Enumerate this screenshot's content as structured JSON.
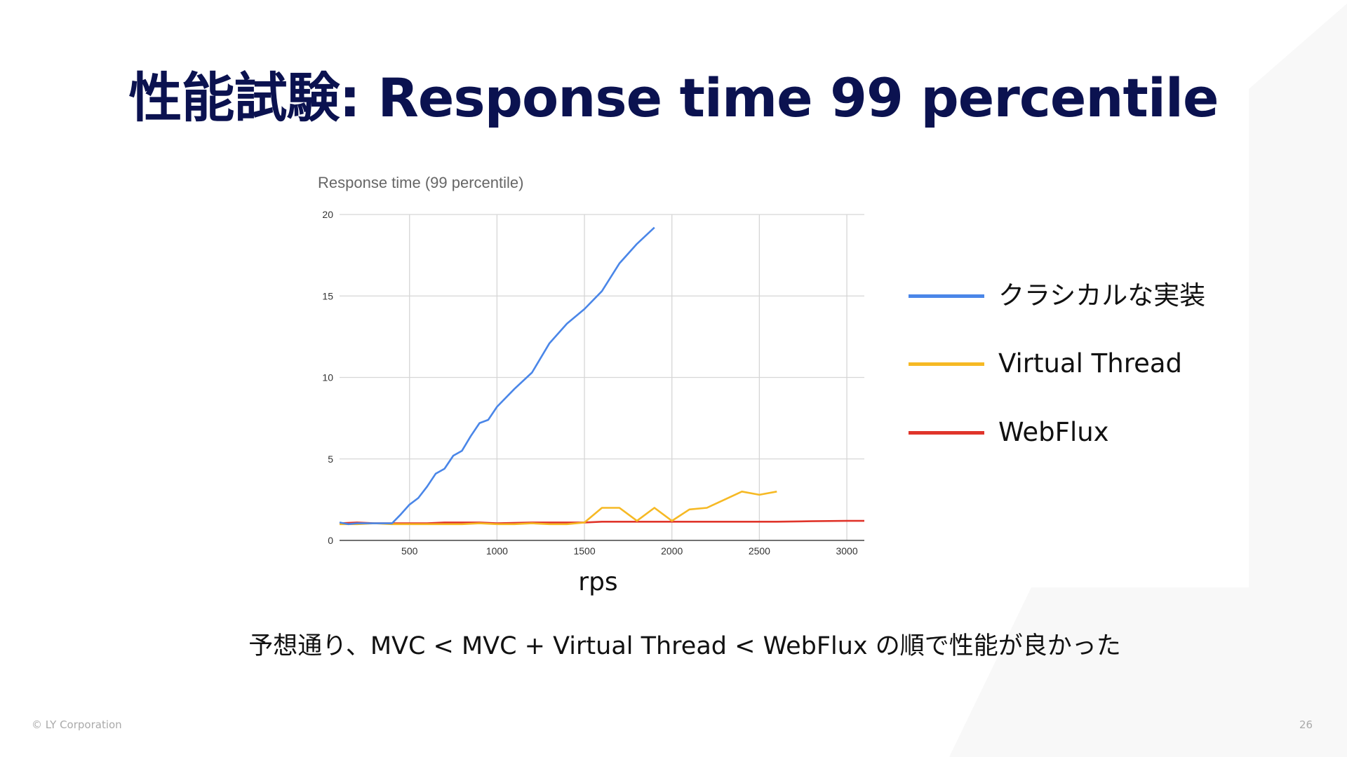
{
  "slide": {
    "title": "性能試験: Response time 99 percentile",
    "caption": "予想通り、MVC < MVC + Virtual Thread < WebFlux の順で性能が良かった",
    "footer": "© LY Corporation",
    "page_number": "26",
    "background_shape_color": "#f8f8f8"
  },
  "chart_data": {
    "type": "line",
    "title": "Response time (99 percentile)",
    "xlabel": "rps",
    "ylabel": "",
    "xlim": [
      100,
      3100
    ],
    "ylim": [
      0,
      20
    ],
    "xticks": [
      500,
      1000,
      1500,
      2000,
      2500,
      3000
    ],
    "yticks": [
      0,
      5,
      10,
      15,
      20
    ],
    "grid": true,
    "legend_position": "right",
    "series": [
      {
        "name": "クラシカルな実装",
        "color": "#4a86e8",
        "x": [
          100,
          150,
          200,
          250,
          300,
          350,
          400,
          450,
          500,
          550,
          600,
          650,
          700,
          750,
          800,
          850,
          900,
          950,
          1000,
          1100,
          1200,
          1300,
          1400,
          1500,
          1600,
          1700,
          1800,
          1900
        ],
        "y": [
          1.1,
          1.0,
          1.05,
          1.05,
          1.05,
          1.05,
          1.05,
          1.6,
          2.2,
          2.6,
          3.3,
          4.1,
          4.4,
          5.2,
          5.5,
          6.4,
          7.2,
          7.4,
          8.2,
          9.3,
          10.3,
          12.1,
          13.3,
          14.2,
          15.3,
          17.0,
          18.2,
          19.2
        ]
      },
      {
        "name": "Virtual Thread",
        "color": "#f6b924",
        "x": [
          100,
          200,
          300,
          400,
          500,
          600,
          700,
          800,
          900,
          1000,
          1100,
          1200,
          1300,
          1400,
          1500,
          1600,
          1700,
          1800,
          1900,
          2000,
          2100,
          2200,
          2300,
          2400,
          2500,
          2600
        ],
        "y": [
          1.0,
          1.0,
          1.05,
          1.0,
          1.0,
          1.0,
          1.0,
          1.0,
          1.05,
          1.0,
          1.0,
          1.05,
          1.0,
          1.0,
          1.1,
          2.0,
          2.0,
          1.2,
          2.0,
          1.2,
          1.9,
          2.0,
          2.5,
          3.0,
          2.8,
          3.0
        ]
      },
      {
        "name": "WebFlux",
        "color": "#e0352b",
        "x": [
          100,
          200,
          300,
          400,
          500,
          600,
          700,
          800,
          900,
          1000,
          1200,
          1400,
          1500,
          1600,
          1800,
          2000,
          2200,
          2400,
          2600,
          2800,
          3000,
          3100
        ],
        "y": [
          1.05,
          1.1,
          1.05,
          1.05,
          1.05,
          1.05,
          1.1,
          1.1,
          1.1,
          1.05,
          1.1,
          1.1,
          1.1,
          1.15,
          1.15,
          1.15,
          1.15,
          1.15,
          1.15,
          1.18,
          1.2,
          1.2
        ]
      }
    ]
  }
}
